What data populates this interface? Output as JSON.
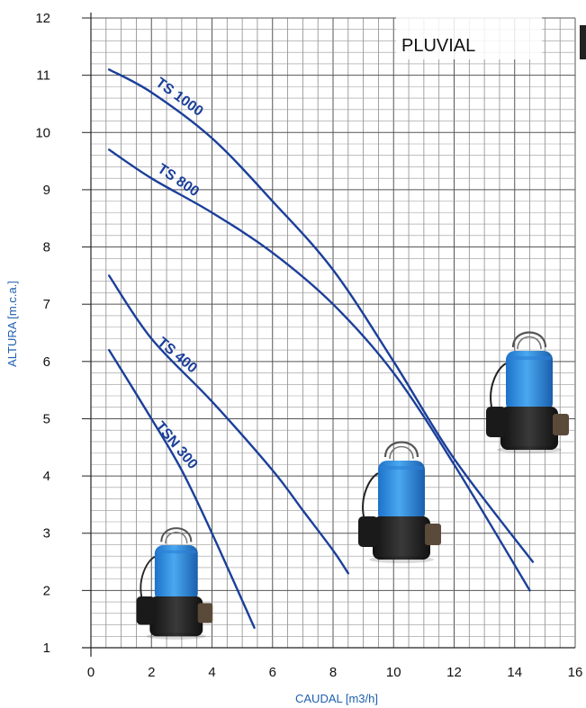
{
  "chart_data": {
    "type": "line",
    "tag": "PLUVIAL",
    "xlabel": "CAUDAL [m3/h]",
    "ylabel": "ALTURA [m.c.a.]",
    "xlim": [
      0,
      16
    ],
    "ylim": [
      1,
      12
    ],
    "xticks": [
      0,
      2,
      4,
      6,
      8,
      10,
      12,
      14,
      16
    ],
    "yticks": [
      1,
      2,
      3,
      4,
      5,
      6,
      7,
      8,
      9,
      10,
      11,
      12
    ],
    "grid": true,
    "line_color": "#1b3f9a",
    "series": [
      {
        "name": "TS 1000",
        "x": [
          0.6,
          2.0,
          4.0,
          6.0,
          8.0,
          10.0,
          12.0,
          14.6
        ],
        "y": [
          11.1,
          10.7,
          9.9,
          8.8,
          7.6,
          6.0,
          4.3,
          2.5
        ]
      },
      {
        "name": "TS 800",
        "x": [
          0.6,
          2.0,
          4.0,
          6.0,
          8.0,
          10.0,
          12.0,
          14.5
        ],
        "y": [
          9.7,
          9.2,
          8.6,
          7.9,
          7.0,
          5.8,
          4.2,
          2.0
        ]
      },
      {
        "name": "TS 400",
        "x": [
          0.6,
          2.0,
          4.0,
          6.0,
          7.0,
          8.0,
          8.5
        ],
        "y": [
          7.5,
          6.4,
          5.3,
          4.1,
          3.4,
          2.7,
          2.3
        ]
      },
      {
        "name": "TSN 300",
        "x": [
          0.6,
          2.0,
          3.0,
          4.0,
          5.4
        ],
        "y": [
          6.2,
          5.0,
          4.1,
          3.0,
          1.35
        ]
      }
    ],
    "images": [
      {
        "name": "pump-small"
      },
      {
        "name": "pump-medium"
      },
      {
        "name": "pump-large"
      }
    ]
  }
}
